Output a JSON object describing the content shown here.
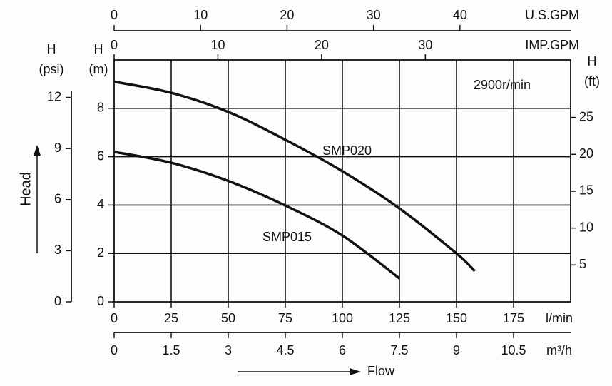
{
  "chart_data": {
    "type": "line",
    "speed": "2900r/min",
    "y_title": "Head",
    "x_title": "Flow",
    "x_label": "l/min",
    "xlim": [
      0,
      200
    ],
    "xticks": [
      0,
      25,
      50,
      75,
      100,
      125,
      150,
      175
    ],
    "y_label": [
      "H",
      "(m)"
    ],
    "ylim": [
      0,
      10
    ],
    "yticks": [
      0,
      2,
      4,
      6,
      8
    ],
    "grid": true,
    "y_psi": {
      "label": [
        "H",
        "(psi)"
      ],
      "lim": [
        0,
        14.2
      ],
      "ticks": [
        0,
        3,
        6,
        9,
        12
      ]
    },
    "y_ft": {
      "label": [
        "H",
        "(ft)"
      ],
      "lim": [
        0,
        32.8
      ],
      "ticks": [
        5,
        10,
        15,
        20,
        25
      ]
    },
    "x_usgpm": {
      "label": "U.S.GPM",
      "lim": [
        0,
        52.8
      ],
      "ticks": [
        0,
        10,
        20,
        30,
        40
      ]
    },
    "x_impgpm": {
      "label": "IMP.GPM",
      "lim": [
        0,
        44
      ],
      "ticks": [
        0,
        10,
        20,
        30
      ]
    },
    "x_m3h": {
      "label": "m³/h",
      "lim": [
        0,
        12
      ],
      "ticks": [
        0,
        1.5,
        3,
        4.5,
        6,
        7.5,
        9,
        10.5
      ]
    },
    "series": [
      {
        "name": "SMP020",
        "color": "#111111",
        "x": [
          0,
          25,
          50,
          75,
          100,
          125,
          150,
          158
        ],
        "values": [
          9.1,
          8.64,
          7.85,
          6.7,
          5.4,
          3.86,
          2.0,
          1.27
        ]
      },
      {
        "name": "SMP015",
        "color": "#111111",
        "x": [
          0,
          25,
          50,
          75,
          100,
          125
        ],
        "values": [
          6.2,
          5.75,
          5.0,
          3.98,
          2.74,
          0.97
        ]
      }
    ]
  }
}
